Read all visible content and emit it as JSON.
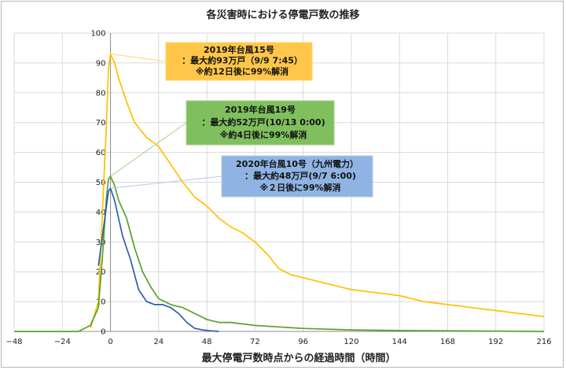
{
  "chart_data": {
    "type": "line",
    "title": "各災害時における停電戸数の推移",
    "xlabel": "最大停電戸数時点からの経過時間（時間）",
    "ylabel": "",
    "xlim": [
      -48,
      216
    ],
    "ylim": [
      0,
      100
    ],
    "x_ticks": [
      -48,
      -24,
      0,
      24,
      48,
      72,
      96,
      120,
      144,
      168,
      192,
      216
    ],
    "y_ticks": [
      0,
      10,
      20,
      30,
      40,
      50,
      60,
      70,
      80,
      90,
      100
    ],
    "grid": true,
    "legend": "none",
    "series": [
      {
        "color": "#ffc000",
        "x": [
          -10,
          -6,
          -4,
          -2,
          -1,
          0,
          2,
          4,
          8,
          12,
          18,
          24,
          30,
          36,
          42,
          48,
          54,
          60,
          66,
          72,
          78,
          84,
          90,
          96,
          102,
          108,
          114,
          120,
          132,
          144,
          156,
          168,
          180,
          192,
          204,
          216
        ],
        "y": [
          1,
          10,
          40,
          70,
          88,
          93,
          90,
          85,
          77,
          70,
          65,
          62,
          56,
          50,
          45,
          42,
          38,
          35,
          33,
          30,
          26,
          21,
          19,
          18,
          17,
          16,
          15,
          14,
          13,
          12,
          10,
          9,
          8,
          7,
          6,
          5
        ]
      },
      {
        "color": "#5aa02c",
        "x": [
          -48,
          -16,
          -10,
          -6,
          -4,
          -2,
          -1,
          0,
          2,
          4,
          8,
          12,
          16,
          20,
          24,
          30,
          36,
          42,
          48,
          54,
          60,
          72,
          84,
          96,
          120,
          144,
          168,
          192,
          216
        ],
        "y": [
          0,
          0,
          2,
          8,
          25,
          45,
          51,
          52,
          49,
          44,
          38,
          28,
          20,
          15,
          11,
          9,
          8,
          6,
          4,
          3,
          3,
          2,
          1.5,
          1,
          0.5,
          0.3,
          0.2,
          0.1,
          0
        ]
      },
      {
        "color": "#2e5eb3",
        "x": [
          -6,
          -4,
          -2,
          -1,
          0,
          2,
          4,
          6,
          10,
          14,
          18,
          22,
          26,
          30,
          34,
          38,
          42,
          46,
          50,
          54
        ],
        "y": [
          22,
          32,
          42,
          47,
          48,
          44,
          38,
          32,
          24,
          14,
          10,
          9,
          9,
          8,
          6,
          3,
          1,
          0.5,
          0.2,
          0
        ]
      }
    ],
    "annotations": [
      {
        "lines": [
          "2019年台風15号",
          "：最大約93万戸（9/9 7:45）",
          "※約12日後に99%解消"
        ],
        "point": [
          0,
          93
        ],
        "fill": "#ffc64a",
        "stroke": "#ffd966"
      },
      {
        "lines": [
          "2019年台風19号",
          "：最大約52万戸(10/13 0:00)",
          "※約4日後に99%解消"
        ],
        "point": [
          0,
          52
        ],
        "fill": "#7fbf5e",
        "stroke": "#a9d18e"
      },
      {
        "lines": [
          "2020年台風10号（九州電力）",
          "：最大約48万戸(9/7 6:00)",
          "※２日後に99%解消"
        ],
        "point": [
          0,
          48
        ],
        "fill": "#8fb4e3",
        "stroke": "#b4c7e7"
      }
    ]
  }
}
